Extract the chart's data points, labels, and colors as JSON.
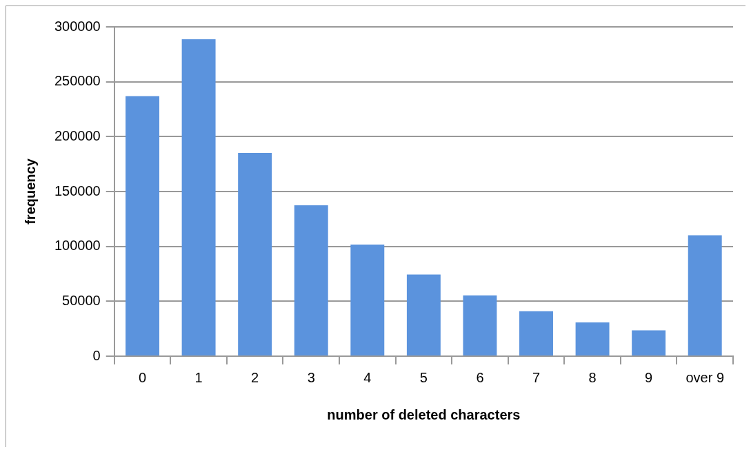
{
  "chart_data": {
    "type": "bar",
    "xlabel": "number of deleted characters",
    "ylabel": "frequency",
    "categories": [
      "0",
      "1",
      "2",
      "3",
      "4",
      "5",
      "6",
      "7",
      "8",
      "9",
      "over 9"
    ],
    "values": [
      237000,
      288700,
      185200,
      137400,
      101700,
      74300,
      55400,
      40900,
      30700,
      23500,
      110200
    ],
    "color": "#5b93dd",
    "ylim": [
      0,
      300000
    ],
    "yticks": [
      0,
      50000,
      100000,
      150000,
      200000,
      250000,
      300000
    ],
    "grid": "y",
    "legend": false
  }
}
